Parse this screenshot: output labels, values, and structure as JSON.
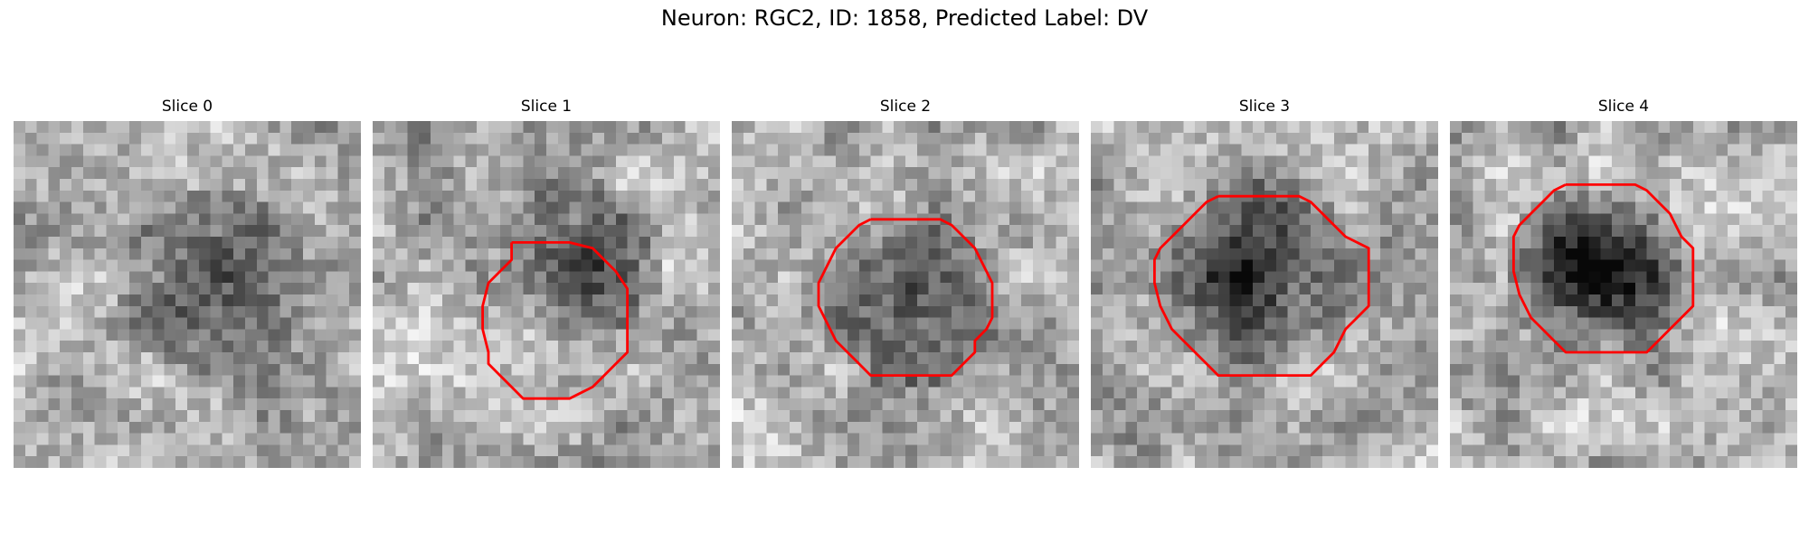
{
  "figure": {
    "title": "Neuron: RGC2, ID: 1858, Predicted Label: DV"
  },
  "panels": [
    {
      "title": "Slice 0",
      "has_contour": false,
      "seed": 11,
      "dark_center": [
        0.55,
        0.45
      ],
      "dark_radius": 0.28,
      "dark_strength": 0.25
    },
    {
      "title": "Slice 1",
      "has_contour": true,
      "seed": 23,
      "dark_center": [
        0.58,
        0.38
      ],
      "dark_radius": 0.24,
      "dark_strength": 0.4
    },
    {
      "title": "Slice 2",
      "has_contour": true,
      "seed": 37,
      "dark_center": [
        0.5,
        0.5
      ],
      "dark_radius": 0.26,
      "dark_strength": 0.35
    },
    {
      "title": "Slice 3",
      "has_contour": true,
      "seed": 41,
      "dark_center": [
        0.45,
        0.42
      ],
      "dark_radius": 0.3,
      "dark_strength": 0.4
    },
    {
      "title": "Slice 4",
      "has_contour": true,
      "seed": 53,
      "dark_center": [
        0.4,
        0.42
      ],
      "dark_radius": 0.26,
      "dark_strength": 0.55
    }
  ],
  "contour_color": "#ff0000"
}
